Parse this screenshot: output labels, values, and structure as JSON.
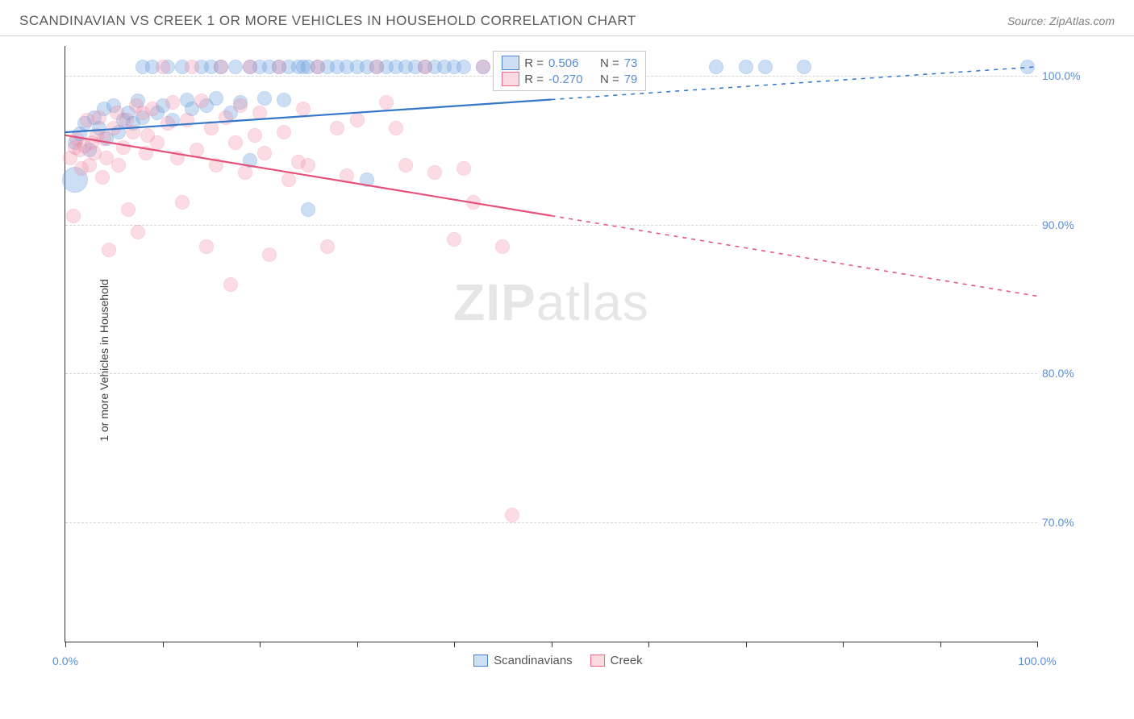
{
  "header": {
    "title": "SCANDINAVIAN VS CREEK 1 OR MORE VEHICLES IN HOUSEHOLD CORRELATION CHART",
    "source": "Source: ZipAtlas.com"
  },
  "watermark": {
    "bold": "ZIP",
    "rest": "atlas"
  },
  "chart": {
    "type": "scatter",
    "y_axis_label": "1 or more Vehicles in Household",
    "background_color": "#ffffff",
    "grid_color": "#d5d5d5",
    "axis_color": "#333333",
    "tick_label_color": "#5b8fd6",
    "xlim": [
      0,
      100
    ],
    "ylim": [
      62,
      102
    ],
    "x_ticks_minor": [
      10,
      20,
      30,
      40,
      50,
      60,
      70,
      80,
      90
    ],
    "x_ticks_labeled": [
      {
        "v": 0,
        "label": "0.0%"
      },
      {
        "v": 100,
        "label": "100.0%"
      }
    ],
    "y_ticks": [
      {
        "v": 70,
        "label": "70.0%"
      },
      {
        "v": 80,
        "label": "80.0%"
      },
      {
        "v": 90,
        "label": "90.0%"
      },
      {
        "v": 100,
        "label": "100.0%"
      }
    ],
    "series": [
      {
        "name": "Scandinavians",
        "fill_color": "#6fa3e0",
        "fill_opacity": 0.35,
        "stroke_color": "#4787d1",
        "marker_radius": 9,
        "trend": {
          "x1": 0,
          "y1": 96.2,
          "x2": 100,
          "y2": 100.6,
          "solid_until": 50,
          "color": "#3577c9",
          "width": 2.2
        },
        "correlation": {
          "R_label": "R =",
          "R": "0.506",
          "N_label": "N =",
          "N": "73"
        },
        "points": [
          {
            "x": 1,
            "y": 93.0,
            "r": 16
          },
          {
            "x": 1,
            "y": 95.5
          },
          {
            "x": 1.5,
            "y": 96.1
          },
          {
            "x": 2,
            "y": 96.8
          },
          {
            "x": 2.5,
            "y": 95.0
          },
          {
            "x": 3,
            "y": 97.2
          },
          {
            "x": 3.5,
            "y": 96.5
          },
          {
            "x": 4,
            "y": 97.8
          },
          {
            "x": 4.2,
            "y": 95.8
          },
          {
            "x": 5,
            "y": 98.0
          },
          {
            "x": 5.5,
            "y": 96.2
          },
          {
            "x": 6,
            "y": 97.0
          },
          {
            "x": 6.5,
            "y": 97.5
          },
          {
            "x": 7,
            "y": 96.8
          },
          {
            "x": 7.5,
            "y": 98.3
          },
          {
            "x": 8,
            "y": 100.6
          },
          {
            "x": 8,
            "y": 97.2
          },
          {
            "x": 9,
            "y": 100.6
          },
          {
            "x": 9.5,
            "y": 97.5
          },
          {
            "x": 10,
            "y": 98.0
          },
          {
            "x": 10.5,
            "y": 100.6
          },
          {
            "x": 11,
            "y": 97.0
          },
          {
            "x": 12,
            "y": 100.6
          },
          {
            "x": 12.5,
            "y": 98.4
          },
          {
            "x": 13,
            "y": 97.8
          },
          {
            "x": 14,
            "y": 100.6
          },
          {
            "x": 14.5,
            "y": 98.0
          },
          {
            "x": 15,
            "y": 100.6
          },
          {
            "x": 15.5,
            "y": 98.5
          },
          {
            "x": 16,
            "y": 100.6
          },
          {
            "x": 17,
            "y": 97.5
          },
          {
            "x": 17.5,
            "y": 100.6
          },
          {
            "x": 18,
            "y": 98.2
          },
          {
            "x": 19,
            "y": 100.6
          },
          {
            "x": 19,
            "y": 94.3
          },
          {
            "x": 20,
            "y": 100.6
          },
          {
            "x": 20.5,
            "y": 98.5
          },
          {
            "x": 21,
            "y": 100.6
          },
          {
            "x": 22,
            "y": 100.6
          },
          {
            "x": 22.5,
            "y": 98.4
          },
          {
            "x": 23,
            "y": 100.6
          },
          {
            "x": 24,
            "y": 100.6
          },
          {
            "x": 24.5,
            "y": 100.6
          },
          {
            "x": 25,
            "y": 100.6
          },
          {
            "x": 25,
            "y": 91.0
          },
          {
            "x": 26,
            "y": 100.6
          },
          {
            "x": 27,
            "y": 100.6
          },
          {
            "x": 28,
            "y": 100.6
          },
          {
            "x": 29,
            "y": 100.6
          },
          {
            "x": 30,
            "y": 100.6
          },
          {
            "x": 31,
            "y": 100.6
          },
          {
            "x": 31,
            "y": 93.0
          },
          {
            "x": 32,
            "y": 100.6
          },
          {
            "x": 33,
            "y": 100.6
          },
          {
            "x": 34,
            "y": 100.6
          },
          {
            "x": 35,
            "y": 100.6
          },
          {
            "x": 36,
            "y": 100.6
          },
          {
            "x": 37,
            "y": 100.6
          },
          {
            "x": 38,
            "y": 100.6
          },
          {
            "x": 39,
            "y": 100.6
          },
          {
            "x": 40,
            "y": 100.6
          },
          {
            "x": 41,
            "y": 100.6
          },
          {
            "x": 43,
            "y": 100.6
          },
          {
            "x": 67,
            "y": 100.6
          },
          {
            "x": 70,
            "y": 100.6
          },
          {
            "x": 72,
            "y": 100.6
          },
          {
            "x": 76,
            "y": 100.6
          },
          {
            "x": 99,
            "y": 100.6
          }
        ]
      },
      {
        "name": "Creek",
        "fill_color": "#f28fa8",
        "fill_opacity": 0.3,
        "stroke_color": "#e96b8c",
        "marker_radius": 9,
        "trend": {
          "x1": 0,
          "y1": 96.0,
          "x2": 100,
          "y2": 85.2,
          "solid_until": 50,
          "color": "#e5517a",
          "width": 2.2
        },
        "correlation": {
          "R_label": "R =",
          "R": "-0.270",
          "N_label": "N =",
          "N": "79"
        },
        "points": [
          {
            "x": 0.5,
            "y": 94.5
          },
          {
            "x": 0.8,
            "y": 90.6
          },
          {
            "x": 1,
            "y": 95.2
          },
          {
            "x": 1.2,
            "y": 95.8
          },
          {
            "x": 1.5,
            "y": 95.0
          },
          {
            "x": 1.7,
            "y": 93.8
          },
          {
            "x": 2,
            "y": 95.3
          },
          {
            "x": 2.2,
            "y": 97.0
          },
          {
            "x": 2.5,
            "y": 94.0
          },
          {
            "x": 2.7,
            "y": 95.5
          },
          {
            "x": 3,
            "y": 94.8
          },
          {
            "x": 3.2,
            "y": 96.0
          },
          {
            "x": 3.5,
            "y": 97.2
          },
          {
            "x": 3.8,
            "y": 93.2
          },
          {
            "x": 4,
            "y": 95.8
          },
          {
            "x": 4.2,
            "y": 94.5
          },
          {
            "x": 4.5,
            "y": 88.3
          },
          {
            "x": 5,
            "y": 96.5
          },
          {
            "x": 5.3,
            "y": 97.5
          },
          {
            "x": 5.5,
            "y": 94.0
          },
          {
            "x": 6,
            "y": 95.2
          },
          {
            "x": 6.3,
            "y": 97.0
          },
          {
            "x": 6.5,
            "y": 91.0
          },
          {
            "x": 7,
            "y": 96.2
          },
          {
            "x": 7.3,
            "y": 98.0
          },
          {
            "x": 7.5,
            "y": 89.5
          },
          {
            "x": 8,
            "y": 97.5
          },
          {
            "x": 8.3,
            "y": 94.8
          },
          {
            "x": 8.5,
            "y": 96.0
          },
          {
            "x": 9,
            "y": 97.8
          },
          {
            "x": 9.5,
            "y": 95.5
          },
          {
            "x": 10,
            "y": 100.6
          },
          {
            "x": 10.5,
            "y": 96.8
          },
          {
            "x": 11,
            "y": 98.2
          },
          {
            "x": 11.5,
            "y": 94.5
          },
          {
            "x": 12,
            "y": 91.5
          },
          {
            "x": 12.5,
            "y": 97.0
          },
          {
            "x": 13,
            "y": 100.6
          },
          {
            "x": 13.5,
            "y": 95.0
          },
          {
            "x": 14,
            "y": 98.3
          },
          {
            "x": 14.5,
            "y": 88.5
          },
          {
            "x": 15,
            "y": 96.5
          },
          {
            "x": 15.5,
            "y": 94.0
          },
          {
            "x": 16,
            "y": 100.6
          },
          {
            "x": 16.5,
            "y": 97.2
          },
          {
            "x": 17,
            "y": 86.0
          },
          {
            "x": 17.5,
            "y": 95.5
          },
          {
            "x": 18,
            "y": 98.0
          },
          {
            "x": 18.5,
            "y": 93.5
          },
          {
            "x": 19,
            "y": 100.6
          },
          {
            "x": 19.5,
            "y": 96.0
          },
          {
            "x": 20,
            "y": 97.5
          },
          {
            "x": 20.5,
            "y": 94.8
          },
          {
            "x": 21,
            "y": 88.0
          },
          {
            "x": 22,
            "y": 100.6
          },
          {
            "x": 22.5,
            "y": 96.2
          },
          {
            "x": 23,
            "y": 93.0
          },
          {
            "x": 24,
            "y": 94.2
          },
          {
            "x": 24.5,
            "y": 97.8
          },
          {
            "x": 25,
            "y": 94.0
          },
          {
            "x": 26,
            "y": 100.6
          },
          {
            "x": 27,
            "y": 88.5
          },
          {
            "x": 28,
            "y": 96.5
          },
          {
            "x": 29,
            "y": 93.3
          },
          {
            "x": 30,
            "y": 97.0
          },
          {
            "x": 32,
            "y": 100.6
          },
          {
            "x": 33,
            "y": 98.2
          },
          {
            "x": 34,
            "y": 96.5
          },
          {
            "x": 35,
            "y": 94.0
          },
          {
            "x": 37,
            "y": 100.6
          },
          {
            "x": 38,
            "y": 93.5
          },
          {
            "x": 40,
            "y": 89.0
          },
          {
            "x": 41,
            "y": 93.8
          },
          {
            "x": 42,
            "y": 91.5
          },
          {
            "x": 43,
            "y": 100.6
          },
          {
            "x": 45,
            "y": 88.5
          },
          {
            "x": 46,
            "y": 70.5
          }
        ]
      }
    ],
    "bottom_legend": [
      {
        "label": "Scandinavians",
        "fill": "#6fa3e0",
        "stroke": "#4787d1"
      },
      {
        "label": "Creek",
        "fill": "#f28fa8",
        "stroke": "#e96b8c"
      }
    ]
  }
}
